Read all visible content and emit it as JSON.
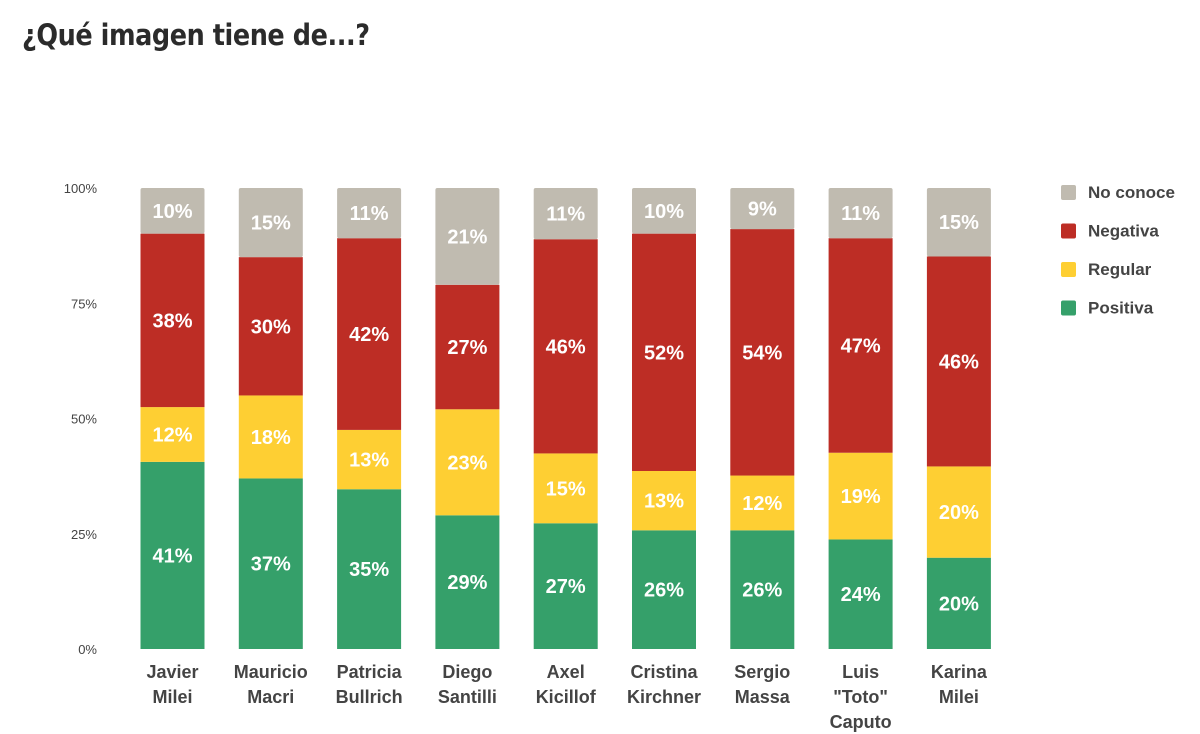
{
  "title": "¿Qué imagen tiene de...?",
  "chart_data": {
    "type": "bar",
    "stacked": true,
    "normalized": true,
    "title": "¿Qué imagen tiene de...?",
    "xlabel": "",
    "ylabel": "",
    "ylim": [
      0,
      100
    ],
    "yticks": [
      "0%",
      "25%",
      "50%",
      "75%",
      "100%"
    ],
    "legend_position": "right",
    "categories": [
      [
        "Javier",
        "Milei"
      ],
      [
        "Mauricio",
        "Macri"
      ],
      [
        "Patricia",
        "Bullrich"
      ],
      [
        "Diego",
        "Santilli"
      ],
      [
        "Axel",
        "Kicillof"
      ],
      [
        "Cristina",
        "Kirchner"
      ],
      [
        "Sergio",
        "Massa"
      ],
      [
        "Luis",
        "\"Toto\"",
        "Caputo"
      ],
      [
        "Karina",
        "Milei"
      ]
    ],
    "series": [
      {
        "name": "Positiva",
        "color": "#35a06a",
        "values": [
          41,
          37,
          35,
          29,
          27,
          26,
          26,
          24,
          20
        ]
      },
      {
        "name": "Regular",
        "color": "#fecf33",
        "values": [
          12,
          18,
          13,
          23,
          15,
          13,
          12,
          19,
          20
        ]
      },
      {
        "name": "Negativa",
        "color": "#bd2d25",
        "values": [
          38,
          30,
          42,
          27,
          46,
          52,
          54,
          47,
          46
        ]
      },
      {
        "name": "No conoce",
        "color": "#c0bbb0",
        "values": [
          10,
          15,
          11,
          21,
          11,
          10,
          9,
          11,
          15
        ]
      }
    ],
    "legend_order": [
      "No conoce",
      "Negativa",
      "Regular",
      "Positiva"
    ]
  }
}
